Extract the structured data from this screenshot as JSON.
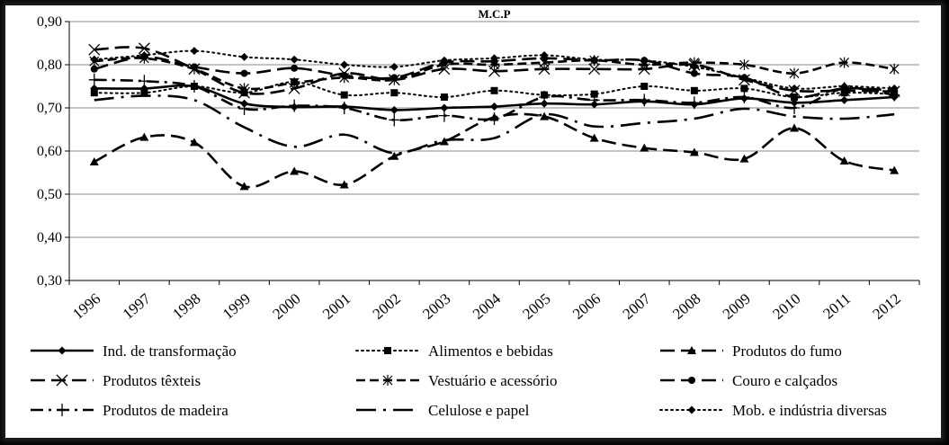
{
  "chart_data": {
    "type": "line",
    "title": "M.C.P",
    "xlabel": "",
    "ylabel": "",
    "ylim": [
      0.3,
      0.9
    ],
    "yticks": [
      "0,30",
      "0,40",
      "0,50",
      "0,60",
      "0,70",
      "0,80",
      "0,90"
    ],
    "grid": true,
    "legend_position": "bottom",
    "categories": [
      "1996",
      "1997",
      "1998",
      "1999",
      "2000",
      "2001",
      "2002",
      "2003",
      "2004",
      "2005",
      "2006",
      "2007",
      "2008",
      "2009",
      "2010",
      "2011",
      "2012"
    ],
    "series": [
      {
        "name": "Ind. de transformação",
        "dash": "solid",
        "marker": "diamond",
        "values": [
          0.745,
          0.745,
          0.75,
          0.71,
          0.702,
          0.703,
          0.695,
          0.7,
          0.703,
          0.71,
          0.708,
          0.715,
          0.708,
          0.722,
          0.712,
          0.718,
          0.725
        ]
      },
      {
        "name": "Alimentos e bebidas",
        "dash": "dot",
        "marker": "square",
        "values": [
          0.735,
          0.735,
          0.75,
          0.735,
          0.76,
          0.73,
          0.735,
          0.725,
          0.74,
          0.73,
          0.732,
          0.75,
          0.74,
          0.745,
          0.725,
          0.735,
          0.732
        ]
      },
      {
        "name": "Produtos do fumo",
        "dash": "long-dash",
        "marker": "triangle",
        "values": [
          0.575,
          0.632,
          0.62,
          0.518,
          0.553,
          0.522,
          0.588,
          0.622,
          0.678,
          0.68,
          0.63,
          0.607,
          0.597,
          0.582,
          0.653,
          0.577,
          0.555
        ]
      },
      {
        "name": "Produtos têxteis",
        "dash": "long-dash",
        "marker": "x",
        "values": [
          0.835,
          0.838,
          0.79,
          0.735,
          0.745,
          0.78,
          0.765,
          0.79,
          0.785,
          0.79,
          0.79,
          0.79,
          0.8,
          0.765,
          0.74,
          0.74,
          0.738
        ]
      },
      {
        "name": "Vestuário e acessório",
        "dash": "dash",
        "marker": "asterisk",
        "values": [
          0.808,
          0.815,
          0.79,
          0.745,
          0.758,
          0.77,
          0.765,
          0.8,
          0.8,
          0.805,
          0.81,
          0.8,
          0.805,
          0.8,
          0.78,
          0.805,
          0.79
        ]
      },
      {
        "name": "Couro e calçados",
        "dash": "long-dash",
        "marker": "circle",
        "values": [
          0.79,
          0.818,
          0.795,
          0.78,
          0.792,
          0.775,
          0.77,
          0.805,
          0.808,
          0.815,
          0.81,
          0.81,
          0.78,
          0.77,
          0.725,
          0.745,
          0.74
        ]
      },
      {
        "name": "Produtos de madeira",
        "dash": "dash-dot",
        "marker": "plus",
        "values": [
          0.765,
          0.762,
          0.75,
          0.698,
          0.705,
          0.7,
          0.672,
          0.682,
          0.675,
          0.725,
          0.718,
          0.718,
          0.712,
          0.725,
          0.7,
          0.745,
          0.73
        ]
      },
      {
        "name": "Celulose e papel",
        "dash": "long-dash-dot",
        "marker": "none",
        "values": [
          0.718,
          0.728,
          0.718,
          0.655,
          0.61,
          0.638,
          0.595,
          0.625,
          0.63,
          0.685,
          0.657,
          0.665,
          0.675,
          0.698,
          0.68,
          0.675,
          0.685
        ]
      },
      {
        "name": "Mob. e indústria diversas",
        "dash": "dot",
        "marker": "diamond",
        "values": [
          0.812,
          0.822,
          0.832,
          0.818,
          0.812,
          0.8,
          0.795,
          0.81,
          0.815,
          0.822,
          0.812,
          0.81,
          0.795,
          0.77,
          0.745,
          0.75,
          0.745
        ]
      }
    ]
  }
}
